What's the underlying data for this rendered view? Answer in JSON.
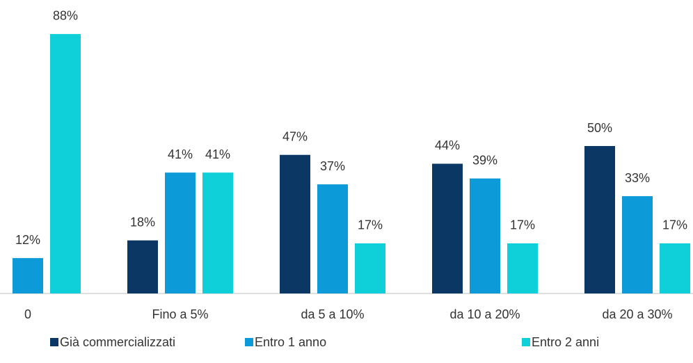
{
  "chart_data": {
    "type": "bar",
    "categories": [
      "0",
      "Fino a 5%",
      "da 5 a 10%",
      "da 10 a 20%",
      "da 20 a 30%"
    ],
    "series": [
      {
        "name": "Già commercializzati",
        "color": "#0a3764",
        "values": [
          null,
          18,
          47,
          44,
          50
        ],
        "value_labels": [
          null,
          "18%",
          "47%",
          "44%",
          "50%"
        ]
      },
      {
        "name": "Entro 1 anno",
        "color": "#0c9ad8",
        "values": [
          12,
          41,
          37,
          39,
          33
        ],
        "value_labels": [
          "12%",
          "41%",
          "37%",
          "39%",
          "33%"
        ]
      },
      {
        "name": "Entro 2 anni",
        "color": "#0fd0d8",
        "values": [
          88,
          41,
          17,
          17,
          17
        ],
        "value_labels": [
          "88%",
          "41%",
          "17%",
          "17%",
          "17%"
        ]
      }
    ],
    "ylim": [
      0,
      100
    ]
  }
}
